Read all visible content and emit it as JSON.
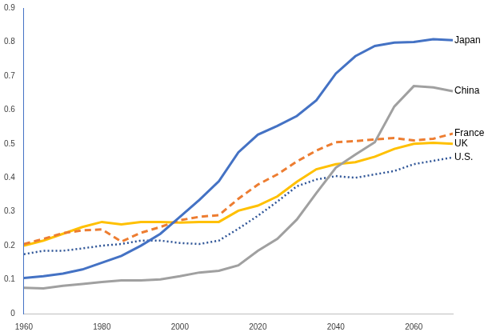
{
  "chart_data": {
    "type": "line",
    "x": [
      1960,
      1965,
      1970,
      1975,
      1980,
      1985,
      1990,
      1995,
      2000,
      2005,
      2010,
      2015,
      2020,
      2025,
      2030,
      2035,
      2040,
      2045,
      2050,
      2055,
      2060,
      2065,
      2070
    ],
    "series": [
      {
        "name": "Japan",
        "color": "#4472c4",
        "line_style": "solid",
        "marker": "none",
        "values": [
          0.105,
          0.11,
          0.118,
          0.13,
          0.15,
          0.17,
          0.2,
          0.235,
          0.285,
          0.335,
          0.39,
          0.475,
          0.527,
          0.553,
          0.582,
          0.628,
          0.707,
          0.758,
          0.788,
          0.798,
          0.8,
          0.808,
          0.805
        ]
      },
      {
        "name": "China",
        "color": "#a0a0a0",
        "line_style": "solid",
        "marker": "none",
        "values": [
          0.076,
          0.074,
          0.082,
          0.087,
          0.093,
          0.098,
          0.098,
          0.101,
          0.11,
          0.121,
          0.126,
          0.142,
          0.185,
          0.22,
          0.277,
          0.355,
          0.43,
          0.468,
          0.505,
          0.61,
          0.67,
          0.666,
          0.655
        ]
      },
      {
        "name": "France",
        "color": "#ed7d31",
        "line_style": "dashed",
        "marker": "none",
        "values": [
          0.205,
          0.22,
          0.237,
          0.245,
          0.248,
          0.212,
          0.238,
          0.255,
          0.275,
          0.285,
          0.29,
          0.338,
          0.38,
          0.41,
          0.448,
          0.48,
          0.505,
          0.508,
          0.513,
          0.517,
          0.51,
          0.515,
          0.53
        ]
      },
      {
        "name": "UK",
        "color": "#ffc000",
        "line_style": "solid",
        "marker": "none",
        "values": [
          0.2,
          0.215,
          0.235,
          0.255,
          0.27,
          0.263,
          0.27,
          0.27,
          0.268,
          0.27,
          0.27,
          0.303,
          0.318,
          0.345,
          0.388,
          0.425,
          0.44,
          0.446,
          0.462,
          0.485,
          0.5,
          0.503,
          0.5
        ]
      },
      {
        "name": "U.S.",
        "color": "#2f5597",
        "line_style": "dotted",
        "marker": "none",
        "values": [
          0.175,
          0.185,
          0.185,
          0.192,
          0.2,
          0.205,
          0.215,
          0.215,
          0.208,
          0.205,
          0.215,
          0.25,
          0.288,
          0.33,
          0.375,
          0.395,
          0.405,
          0.4,
          0.41,
          0.42,
          0.44,
          0.45,
          0.46
        ]
      }
    ],
    "xlim": [
      1960,
      2070
    ],
    "xticks": [
      1960,
      1980,
      2000,
      2020,
      2040,
      2060
    ],
    "ylim": [
      0,
      0.9
    ],
    "yticks": [
      0,
      0.1,
      0.2,
      0.3,
      0.4,
      0.5,
      0.6,
      0.7,
      0.8,
      0.9
    ],
    "grid": false
  }
}
